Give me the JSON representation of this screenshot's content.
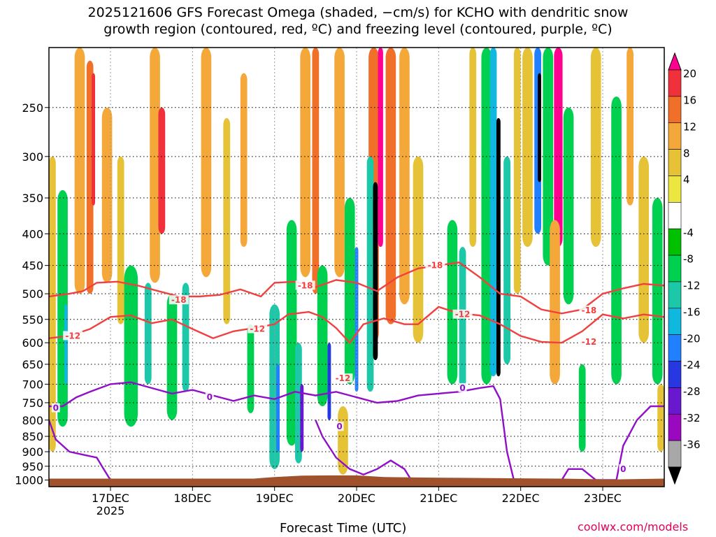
{
  "title_line1": "2025121606 GFS Forecast Omega (shaded, −cm/s) for KCHO with dendritic snow",
  "title_line2": "growth region (contoured, red, ºC) and freezing level (contoured, purple, ºC)",
  "xlabel": "Forecast Time (UTC)",
  "credit": "coolwx.com/models",
  "chart_data": {
    "type": "heatmap",
    "title": "2025121606 GFS Forecast Omega (shaded, −cm/s) for KCHO with dendritic snow growth region (contoured, red, ºC) and freezing level (contoured, purple, ºC)",
    "xlabel": "Forecast Time (UTC)",
    "ylabel": "",
    "y_axis": "pressure (hPa), log scale, inverted",
    "y_ticks": [
      250,
      300,
      350,
      400,
      450,
      500,
      550,
      600,
      650,
      700,
      750,
      800,
      850,
      900,
      950,
      1000
    ],
    "x_ticks": [
      {
        "label": "17DEC",
        "sub": "2025",
        "hours": 18
      },
      {
        "label": "18DEC",
        "sub": "",
        "hours": 42
      },
      {
        "label": "19DEC",
        "sub": "",
        "hours": 66
      },
      {
        "label": "20DEC",
        "sub": "",
        "hours": 90
      },
      {
        "label": "21DEC",
        "sub": "",
        "hours": 114
      },
      {
        "label": "22DEC",
        "sub": "",
        "hours": 138
      },
      {
        "label": "23DEC",
        "sub": "",
        "hours": 162
      }
    ],
    "x_range_hours": [
      0,
      180
    ],
    "y_range_hpa": [
      200,
      1025
    ],
    "grid": true,
    "colorbar": {
      "labels": [
        20,
        16,
        12,
        8,
        4,
        -4,
        -8,
        -12,
        -16,
        -20,
        -24,
        -28,
        -32,
        -36
      ],
      "colors": [
        "#ff0090",
        "#f0303a",
        "#f0702a",
        "#f5a83a",
        "#e6c236",
        "#ece640",
        "#ffffff",
        "#00c000",
        "#00d050",
        "#1cc8a8",
        "#10b8e0",
        "#2080ff",
        "#2838e0",
        "#6a18d0",
        "#9a08c0",
        "#a8a8a8",
        "#000000"
      ]
    },
    "contours": [
      {
        "level": -18,
        "color": "#f04040",
        "points": [
          [
            0,
            505
          ],
          [
            6,
            500
          ],
          [
            10,
            495
          ],
          [
            14,
            480
          ],
          [
            20,
            478
          ],
          [
            26,
            485
          ],
          [
            32,
            495
          ],
          [
            38,
            505
          ],
          [
            44,
            505
          ],
          [
            50,
            502
          ],
          [
            56,
            492
          ],
          [
            62,
            505
          ],
          [
            66,
            480
          ],
          [
            72,
            478
          ],
          [
            78,
            488
          ],
          [
            84,
            475
          ],
          [
            90,
            480
          ],
          [
            96,
            495
          ],
          [
            102,
            470
          ],
          [
            108,
            455
          ],
          [
            114,
            450
          ],
          [
            120,
            445
          ],
          [
            126,
            470
          ],
          [
            132,
            500
          ],
          [
            138,
            505
          ],
          [
            144,
            530
          ],
          [
            150,
            538
          ],
          [
            156,
            530
          ],
          [
            162,
            500
          ],
          [
            168,
            490
          ],
          [
            174,
            482
          ],
          [
            180,
            485
          ]
        ]
      },
      {
        "level": -12,
        "color": "#f04040",
        "points": [
          [
            0,
            590
          ],
          [
            6,
            585
          ],
          [
            12,
            570
          ],
          [
            18,
            545
          ],
          [
            24,
            542
          ],
          [
            30,
            558
          ],
          [
            36,
            550
          ],
          [
            42,
            570
          ],
          [
            48,
            590
          ],
          [
            54,
            575
          ],
          [
            60,
            568
          ],
          [
            66,
            560
          ],
          [
            70,
            540
          ],
          [
            76,
            535
          ],
          [
            80,
            545
          ],
          [
            84,
            568
          ],
          [
            88,
            600
          ],
          [
            92,
            560
          ],
          [
            98,
            548
          ],
          [
            104,
            560
          ],
          [
            108,
            560
          ],
          [
            114,
            525
          ],
          [
            120,
            538
          ],
          [
            126,
            542
          ],
          [
            132,
            560
          ],
          [
            138,
            585
          ],
          [
            144,
            598
          ],
          [
            150,
            600
          ],
          [
            156,
            575
          ],
          [
            162,
            540
          ],
          [
            168,
            548
          ],
          [
            174,
            540
          ],
          [
            180,
            545
          ]
        ]
      },
      {
        "level": 0,
        "color": "#9010c8",
        "points": [
          [
            0,
            760
          ],
          [
            4,
            760
          ],
          [
            8,
            735
          ],
          [
            12,
            720
          ],
          [
            18,
            700
          ],
          [
            24,
            695
          ],
          [
            30,
            710
          ],
          [
            36,
            725
          ],
          [
            42,
            715
          ],
          [
            48,
            730
          ],
          [
            54,
            745
          ],
          [
            60,
            730
          ],
          [
            66,
            740
          ],
          [
            72,
            720
          ],
          [
            78,
            730
          ],
          [
            84,
            720
          ],
          [
            90,
            735
          ],
          [
            96,
            750
          ],
          [
            102,
            745
          ],
          [
            108,
            730
          ],
          [
            114,
            725
          ],
          [
            120,
            720
          ],
          [
            126,
            710
          ],
          [
            130,
            705
          ],
          [
            132,
            740
          ],
          [
            134,
            900
          ],
          [
            136,
            1000
          ],
          [
            150,
            1000
          ],
          [
            152,
            960
          ],
          [
            156,
            960
          ],
          [
            160,
            1000
          ],
          [
            166,
            1000
          ],
          [
            168,
            880
          ],
          [
            172,
            800
          ],
          [
            176,
            760
          ],
          [
            180,
            760
          ]
        ]
      },
      {
        "level": 0,
        "color": "#9010c8",
        "points": [
          [
            0,
            800
          ],
          [
            2,
            860
          ],
          [
            6,
            900
          ],
          [
            10,
            910
          ],
          [
            14,
            920
          ],
          [
            16,
            960
          ],
          [
            18,
            1000
          ]
        ]
      },
      {
        "level": 0,
        "color": "#9010c8",
        "points": [
          [
            78,
            800
          ],
          [
            80,
            850
          ],
          [
            84,
            920
          ],
          [
            88,
            960
          ],
          [
            92,
            980
          ],
          [
            96,
            960
          ],
          [
            100,
            930
          ],
          [
            104,
            960
          ],
          [
            106,
            1000
          ]
        ]
      }
    ],
    "contour_labels": [
      {
        "text": "-18",
        "hours": 38,
        "hpa": 512
      },
      {
        "text": "-18",
        "hours": 75,
        "hpa": 485
      },
      {
        "text": "-18",
        "hours": 113,
        "hpa": 450
      },
      {
        "text": "-18",
        "hours": 158,
        "hpa": 532
      },
      {
        "text": "-12",
        "hours": 7,
        "hpa": 585
      },
      {
        "text": "-12",
        "hours": 61,
        "hpa": 570
      },
      {
        "text": "-12",
        "hours": 86,
        "hpa": 685
      },
      {
        "text": "-12",
        "hours": 121,
        "hpa": 540
      },
      {
        "text": "-12",
        "hours": 158,
        "hpa": 598
      },
      {
        "text": "0",
        "hours": 2,
        "hpa": 765
      },
      {
        "text": "0",
        "hours": 47,
        "hpa": 735
      },
      {
        "text": "0",
        "hours": 85,
        "hpa": 820
      },
      {
        "text": "0",
        "hours": 121,
        "hpa": 710
      },
      {
        "text": "0",
        "hours": 168,
        "hpa": 960
      }
    ],
    "omega_blobs": [
      {
        "hours": 1,
        "p_top": 300,
        "p_bot": 900,
        "w": 2,
        "value": 6
      },
      {
        "hours": 4,
        "p_top": 340,
        "p_bot": 820,
        "w": 3,
        "value": -10
      },
      {
        "hours": 5,
        "p_top": 520,
        "p_bot": 700,
        "w": 1,
        "value": -16
      },
      {
        "hours": 9,
        "p_top": 200,
        "p_bot": 500,
        "w": 3,
        "value": 8
      },
      {
        "hours": 12,
        "p_top": 210,
        "p_bot": 500,
        "w": 2,
        "value": 14
      },
      {
        "hours": 13,
        "p_top": 220,
        "p_bot": 360,
        "w": 1,
        "value": 18
      },
      {
        "hours": 17,
        "p_top": 250,
        "p_bot": 480,
        "w": 3,
        "value": 8
      },
      {
        "hours": 21,
        "p_top": 300,
        "p_bot": 560,
        "w": 2,
        "value": 6
      },
      {
        "hours": 24,
        "p_top": 450,
        "p_bot": 820,
        "w": 4,
        "value": -9
      },
      {
        "hours": 29,
        "p_top": 480,
        "p_bot": 700,
        "w": 2,
        "value": -12
      },
      {
        "hours": 31,
        "p_top": 200,
        "p_bot": 480,
        "w": 3,
        "value": 10
      },
      {
        "hours": 33,
        "p_top": 250,
        "p_bot": 400,
        "w": 2,
        "value": 16
      },
      {
        "hours": 36,
        "p_top": 500,
        "p_bot": 800,
        "w": 3,
        "value": -10
      },
      {
        "hours": 40,
        "p_top": 480,
        "p_bot": 720,
        "w": 2,
        "value": -12
      },
      {
        "hours": 46,
        "p_top": 200,
        "p_bot": 470,
        "w": 3,
        "value": 8
      },
      {
        "hours": 52,
        "p_top": 260,
        "p_bot": 560,
        "w": 2,
        "value": 6
      },
      {
        "hours": 57,
        "p_top": 220,
        "p_bot": 420,
        "w": 2,
        "value": 8
      },
      {
        "hours": 59,
        "p_top": 560,
        "p_bot": 780,
        "w": 2,
        "value": -8
      },
      {
        "hours": 66,
        "p_top": 520,
        "p_bot": 960,
        "w": 3,
        "value": -12
      },
      {
        "hours": 67,
        "p_top": 650,
        "p_bot": 900,
        "w": 1,
        "value": -22
      },
      {
        "hours": 71,
        "p_top": 380,
        "p_bot": 880,
        "w": 3,
        "value": -9
      },
      {
        "hours": 73,
        "p_top": 600,
        "p_bot": 940,
        "w": 2,
        "value": -14
      },
      {
        "hours": 74,
        "p_top": 700,
        "p_bot": 900,
        "w": 1,
        "value": -30
      },
      {
        "hours": 75,
        "p_top": 200,
        "p_bot": 470,
        "w": 3,
        "value": 9
      },
      {
        "hours": 78,
        "p_top": 200,
        "p_bot": 500,
        "w": 2,
        "value": 14
      },
      {
        "hours": 80,
        "p_top": 450,
        "p_bot": 760,
        "w": 3,
        "value": -9
      },
      {
        "hours": 82,
        "p_top": 600,
        "p_bot": 800,
        "w": 1,
        "value": -26
      },
      {
        "hours": 85,
        "p_top": 200,
        "p_bot": 470,
        "w": 3,
        "value": 10
      },
      {
        "hours": 86,
        "p_top": 760,
        "p_bot": 980,
        "w": 3,
        "value": 6
      },
      {
        "hours": 88,
        "p_top": 350,
        "p_bot": 700,
        "w": 3,
        "value": -9
      },
      {
        "hours": 90,
        "p_top": 420,
        "p_bot": 720,
        "w": 1,
        "value": -20
      },
      {
        "hours": 95,
        "p_top": 200,
        "p_bot": 600,
        "w": 3,
        "value": 12
      },
      {
        "hours": 94,
        "p_top": 300,
        "p_bot": 720,
        "w": 2,
        "value": -12
      },
      {
        "hours": 95.5,
        "p_top": 330,
        "p_bot": 640,
        "w": 1.4,
        "value": -36
      },
      {
        "hours": 97,
        "p_top": 200,
        "p_bot": 420,
        "w": 1.5,
        "value": 20
      },
      {
        "hours": 100,
        "p_top": 200,
        "p_bot": 560,
        "w": 3,
        "value": 12
      },
      {
        "hours": 104,
        "p_top": 200,
        "p_bot": 520,
        "w": 3,
        "value": 8
      },
      {
        "hours": 108,
        "p_top": 300,
        "p_bot": 600,
        "w": 3,
        "value": 6
      },
      {
        "hours": 118,
        "p_top": 380,
        "p_bot": 700,
        "w": 3,
        "value": -9
      },
      {
        "hours": 121,
        "p_top": 420,
        "p_bot": 720,
        "w": 2,
        "value": -13
      },
      {
        "hours": 124,
        "p_top": 200,
        "p_bot": 420,
        "w": 2,
        "value": 6
      },
      {
        "hours": 128,
        "p_top": 200,
        "p_bot": 700,
        "w": 3,
        "value": -10
      },
      {
        "hours": 130,
        "p_top": 200,
        "p_bot": 680,
        "w": 2,
        "value": -18
      },
      {
        "hours": 131.5,
        "p_top": 260,
        "p_bot": 680,
        "w": 1.2,
        "value": -36
      },
      {
        "hours": 134,
        "p_top": 300,
        "p_bot": 650,
        "w": 2,
        "value": -12
      },
      {
        "hours": 137,
        "p_top": 200,
        "p_bot": 500,
        "w": 2,
        "value": 6
      },
      {
        "hours": 140,
        "p_top": 200,
        "p_bot": 420,
        "w": 3,
        "value": 6
      },
      {
        "hours": 143,
        "p_top": 200,
        "p_bot": 400,
        "w": 2,
        "value": -22
      },
      {
        "hours": 143.5,
        "p_top": 220,
        "p_bot": 330,
        "w": 1,
        "value": -36
      },
      {
        "hours": 146,
        "p_top": 200,
        "p_bot": 450,
        "w": 3,
        "value": -10
      },
      {
        "hours": 149,
        "p_top": 200,
        "p_bot": 420,
        "w": 2.5,
        "value": 20
      },
      {
        "hours": 148,
        "p_top": 380,
        "p_bot": 700,
        "w": 3,
        "value": 8
      },
      {
        "hours": 152,
        "p_top": 250,
        "p_bot": 520,
        "w": 3,
        "value": -8
      },
      {
        "hours": 156,
        "p_top": 650,
        "p_bot": 900,
        "w": 2,
        "value": -10
      },
      {
        "hours": 160,
        "p_top": 200,
        "p_bot": 420,
        "w": 3,
        "value": 6
      },
      {
        "hours": 166,
        "p_top": 240,
        "p_bot": 700,
        "w": 3,
        "value": -9
      },
      {
        "hours": 170,
        "p_top": 200,
        "p_bot": 360,
        "w": 2,
        "value": 8
      },
      {
        "hours": 174,
        "p_top": 300,
        "p_bot": 600,
        "w": 3,
        "value": 6
      },
      {
        "hours": 178,
        "p_top": 350,
        "p_bot": 700,
        "w": 3,
        "value": -10
      },
      {
        "hours": 179,
        "p_top": 700,
        "p_bot": 900,
        "w": 2,
        "value": 6
      }
    ]
  }
}
